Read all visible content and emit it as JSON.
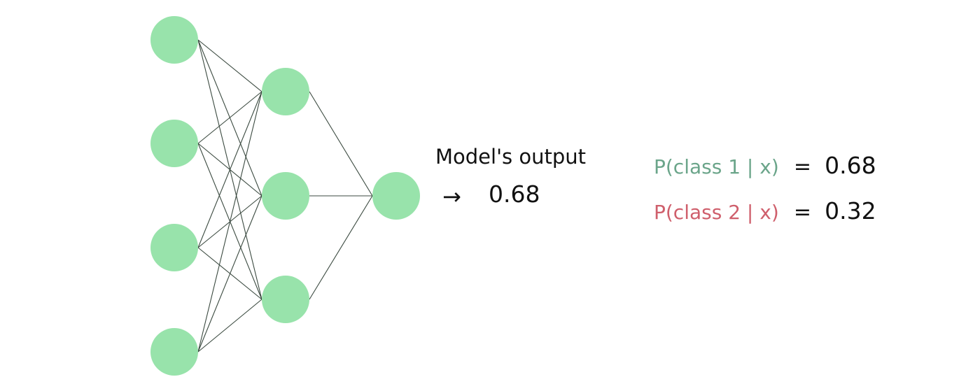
{
  "network": {
    "layers": [
      4,
      3,
      1
    ],
    "neuron_color": "#98e3ab",
    "edge_color": "#3b4a40"
  },
  "output": {
    "label": "Model's output",
    "arrow": "→",
    "value": "0.68"
  },
  "probabilities": [
    {
      "label": "P(class 1 | x)",
      "equals": "=",
      "value": "0.68",
      "color": "#6ba58a"
    },
    {
      "label": "P(class 2 | x)",
      "equals": "=",
      "value": "0.32",
      "color": "#cf5f6c"
    }
  ]
}
